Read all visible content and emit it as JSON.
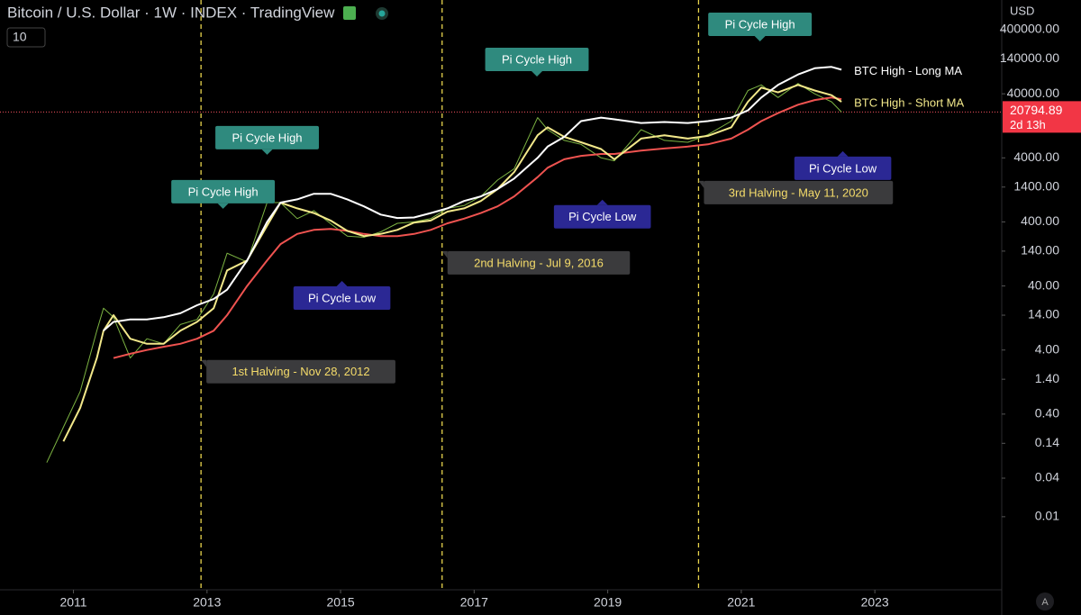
{
  "header": {
    "badge": "10",
    "currency": "USD",
    "auto_button": "A"
  },
  "chart_data": {
    "type": "line",
    "title": "Bitcoin / U.S. Dollar · 1W · INDEX · TradingView",
    "log_scale": true,
    "grid": false,
    "xlim": [
      2009.9,
      2024.9
    ],
    "xticks": [
      2011,
      2013,
      2015,
      2017,
      2019,
      2021,
      2023
    ],
    "ylim": [
      0.001,
      1000000
    ],
    "yticks": [
      {
        "value": 400000,
        "label": "400000.00"
      },
      {
        "value": 140000,
        "label": "140000.00"
      },
      {
        "value": 40000,
        "label": "40000.00"
      },
      {
        "value": 4000,
        "label": "4000.00"
      },
      {
        "value": 1400,
        "label": "1400.00"
      },
      {
        "value": 400,
        "label": "400.00"
      },
      {
        "value": 140,
        "label": "140.00"
      },
      {
        "value": 40,
        "label": "40.00"
      },
      {
        "value": 14,
        "label": "14.00"
      },
      {
        "value": 4,
        "label": "4.00"
      },
      {
        "value": 1.4,
        "label": "1.40"
      },
      {
        "value": 0.4,
        "label": "0.40"
      },
      {
        "value": 0.14,
        "label": "0.14"
      },
      {
        "value": 0.04,
        "label": "0.04"
      },
      {
        "value": 0.01,
        "label": "0.01"
      }
    ],
    "last_price": 20794.89,
    "countdown": "2d 13h",
    "x": [
      2010.6,
      2010.85,
      2011.1,
      2011.35,
      2011.45,
      2011.6,
      2011.85,
      2012.1,
      2012.35,
      2012.6,
      2012.85,
      2013.1,
      2013.3,
      2013.6,
      2013.9,
      2014.1,
      2014.35,
      2014.6,
      2014.85,
      2015.1,
      2015.35,
      2015.6,
      2015.85,
      2016.1,
      2016.35,
      2016.6,
      2016.85,
      2017.1,
      2017.35,
      2017.6,
      2017.95,
      2018.1,
      2018.35,
      2018.6,
      2018.9,
      2019.1,
      2019.5,
      2019.85,
      2020.2,
      2020.5,
      2020.85,
      2021.1,
      2021.3,
      2021.55,
      2021.85,
      2022.1,
      2022.35,
      2022.5
    ],
    "series": [
      {
        "color": "#7cb342",
        "width": 1,
        "values": [
          0.07,
          0.25,
          0.9,
          8,
          18,
          13,
          3,
          6,
          5,
          10,
          12,
          30,
          130,
          95,
          800,
          800,
          450,
          600,
          375,
          240,
          230,
          280,
          380,
          400,
          450,
          650,
          720,
          1000,
          1800,
          2700,
          17000,
          11000,
          7500,
          6500,
          4000,
          3600,
          11000,
          7500,
          7000,
          9200,
          15000,
          45000,
          55000,
          35000,
          58000,
          40000,
          30000,
          20800
        ]
      },
      {
        "color": "#ef5350",
        "width": 2,
        "values": [
          null,
          null,
          null,
          null,
          null,
          3,
          3.5,
          4,
          4.5,
          5,
          6,
          8,
          14,
          40,
          100,
          180,
          260,
          300,
          310,
          290,
          260,
          240,
          240,
          260,
          300,
          380,
          450,
          550,
          700,
          1000,
          2000,
          2800,
          3800,
          4300,
          4600,
          4600,
          5200,
          5600,
          6000,
          6500,
          8000,
          11000,
          15000,
          20000,
          27000,
          32000,
          35000,
          33000
        ]
      },
      {
        "name": "BTC High - Short MA",
        "color": "#f2e88a",
        "width": 2,
        "values": [
          null,
          0.15,
          0.5,
          3,
          8,
          14,
          6,
          5,
          5,
          8,
          11,
          18,
          70,
          100,
          350,
          800,
          650,
          550,
          420,
          290,
          240,
          260,
          300,
          390,
          420,
          580,
          650,
          850,
          1300,
          2400,
          9000,
          12000,
          8500,
          7000,
          5500,
          3800,
          8000,
          9000,
          8000,
          8800,
          12000,
          30000,
          50000,
          42000,
          55000,
          45000,
          38000,
          30000
        ]
      },
      {
        "name": "BTC High - Long MA",
        "color": "#ffffff",
        "width": 2,
        "values": [
          null,
          null,
          null,
          null,
          8,
          11,
          12,
          12,
          13,
          15,
          20,
          25,
          35,
          100,
          400,
          800,
          900,
          1100,
          1100,
          900,
          700,
          520,
          460,
          470,
          550,
          650,
          850,
          1000,
          1300,
          1900,
          4000,
          6000,
          8500,
          15000,
          17000,
          16000,
          14000,
          14500,
          14000,
          15000,
          17000,
          22000,
          35000,
          55000,
          80000,
          100000,
          105000,
          95000
        ]
      }
    ],
    "annotations": [
      {
        "text": "Pi Cycle High",
        "x": 2013.24,
        "y": 640,
        "placement": "above",
        "color": "#2f8a7e",
        "text_color": "#ffffff"
      },
      {
        "text": "Pi Cycle High",
        "x": 2013.9,
        "y": 4470,
        "placement": "above",
        "color": "#2f8a7e",
        "text_color": "#ffffff"
      },
      {
        "text": "Pi Cycle High",
        "x": 2017.94,
        "y": 74500,
        "placement": "above",
        "color": "#2f8a7e",
        "text_color": "#ffffff"
      },
      {
        "text": "Pi Cycle High",
        "x": 2021.28,
        "y": 263000,
        "placement": "above",
        "color": "#2f8a7e",
        "text_color": "#ffffff"
      },
      {
        "text": "Pi Cycle Low",
        "x": 2015.02,
        "y": 48,
        "placement": "below",
        "color": "#2b2894",
        "text_color": "#ffffff"
      },
      {
        "text": "Pi Cycle Low",
        "x": 2018.92,
        "y": 890,
        "placement": "below",
        "color": "#2b2894",
        "text_color": "#ffffff"
      },
      {
        "text": "Pi Cycle Low",
        "x": 2022.52,
        "y": 5080,
        "placement": "below",
        "color": "#2b2894",
        "text_color": "#ffffff"
      },
      {
        "text": "1st Halving - Nov 28, 2012",
        "x": 2012.91,
        "y": 2.8,
        "placement": "right",
        "color": "#3b3b3d",
        "text_color": "#f5dc6a"
      },
      {
        "text": "2nd Halving - Jul 9, 2016",
        "x": 2016.52,
        "y": 140,
        "placement": "right",
        "color": "#3b3b3d",
        "text_color": "#f5dc6a"
      },
      {
        "text": "3rd Halving - May 11, 2020",
        "x": 2020.36,
        "y": 1750,
        "placement": "right",
        "color": "#3b3b3d",
        "text_color": "#f5dc6a"
      }
    ]
  }
}
